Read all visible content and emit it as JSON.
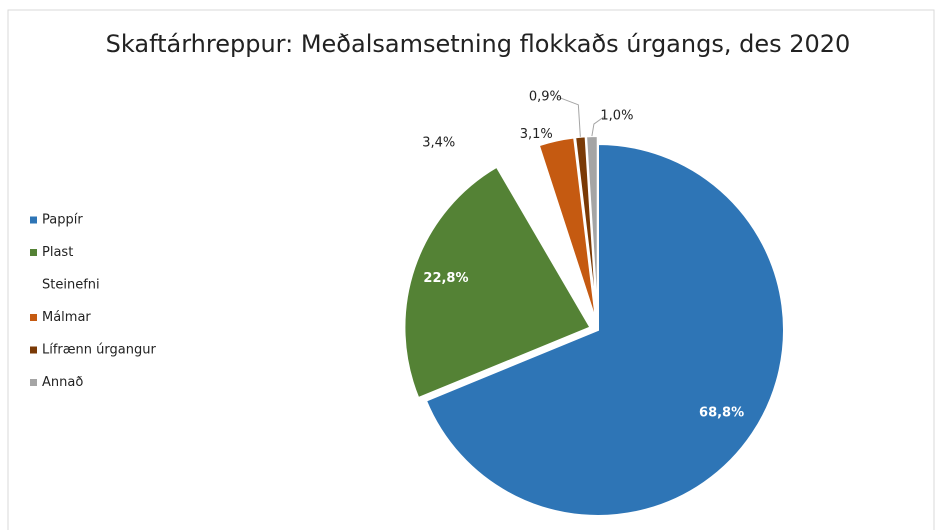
{
  "chart_data": {
    "type": "pie",
    "title": "Skaftárhreppur: Meðalsamsetning flokkaðs úrgangs, des 2020",
    "categories": [
      "Pappír",
      "Plast",
      "Steinefni",
      "Málmar",
      "Lífrænn úrgangur",
      "Annað"
    ],
    "values": [
      68.8,
      22.8,
      3.4,
      3.1,
      0.9,
      1.0
    ],
    "value_labels": [
      "68,8%",
      "22,8%",
      "3,4%",
      "3,1%",
      "0,9%",
      "1,0%"
    ],
    "colors": [
      "#2e75b6",
      "#548235",
      "#ffffff",
      "#c55a11",
      "#7a3a06",
      "#a5a5a5"
    ],
    "legend": "left"
  }
}
